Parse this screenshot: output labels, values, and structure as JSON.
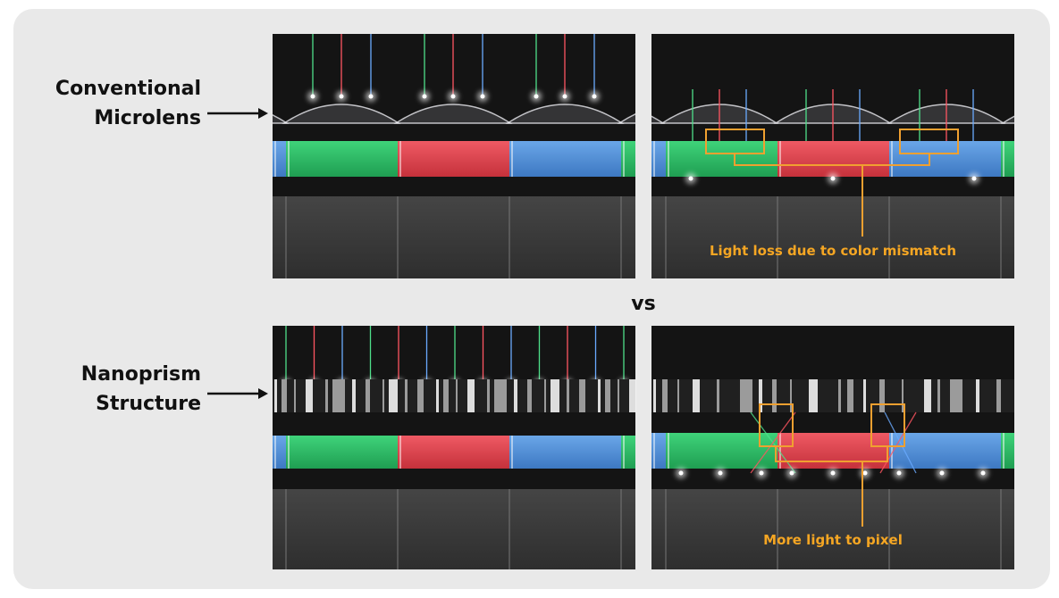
{
  "top_label": {
    "lines": [
      "Conventional",
      "Microlens"
    ]
  },
  "bottom_label": {
    "lines": [
      "Nanoprism",
      "Structure"
    ]
  },
  "separator": "vs",
  "annotations": {
    "top": "Light loss due to color mismatch",
    "bottom": "More light to pixel"
  }
}
